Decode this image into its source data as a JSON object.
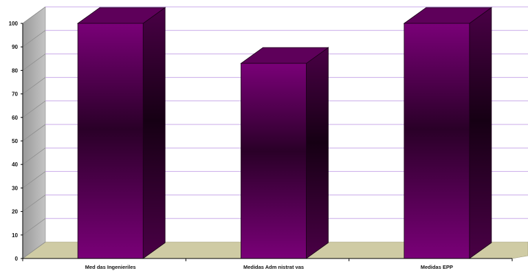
{
  "chart_data": {
    "type": "bar",
    "style": "3d-column",
    "categories": [
      "Med das Ingenieriles",
      "Medidas Adm nistrat vas",
      "Medidas  EPP"
    ],
    "values": [
      100,
      83,
      100
    ],
    "ylim": [
      0,
      100
    ],
    "yticks": [
      0,
      10,
      20,
      30,
      40,
      50,
      60,
      70,
      80,
      90,
      100
    ],
    "grid": true,
    "legend": "none",
    "colors": {
      "bar_front": "#7a0078",
      "bar_dark": "#2a0028",
      "bar_top": "#5e005a",
      "bar_side": "#4a0046",
      "gridline": "#c8a8e8",
      "back_wall": "#ffffff",
      "side_wall": "#b4b4b4",
      "floor": "#cfcba4"
    }
  }
}
